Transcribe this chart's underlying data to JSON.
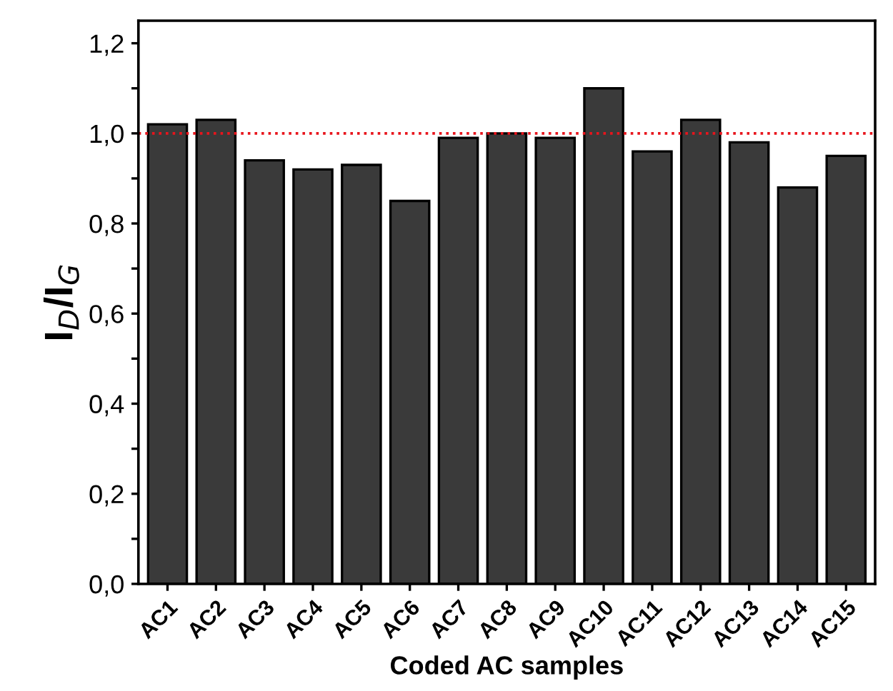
{
  "chart_data": {
    "type": "bar",
    "xlabel": "Coded AC samples",
    "ylabel": "I$_{D}$/I$_{G}$",
    "categories": [
      "AC1",
      "AC2",
      "AC3",
      "AC4",
      "AC5",
      "AC6",
      "AC7",
      "AC8",
      "AC9",
      "AC10",
      "AC11",
      "AC12",
      "AC13",
      "AC14",
      "AC15"
    ],
    "values": [
      1.02,
      1.03,
      0.94,
      0.92,
      0.93,
      0.85,
      0.99,
      1.0,
      0.99,
      1.1,
      0.96,
      1.03,
      0.98,
      0.88,
      0.95
    ],
    "color": "#3a3a3a",
    "ylim": [
      0,
      1.25
    ],
    "yticks": [
      {
        "value": 0,
        "label": "0,0"
      },
      {
        "value": 0.1,
        "label": null
      },
      {
        "value": 0.2,
        "label": "0,2"
      },
      {
        "value": 0.3,
        "label": null
      },
      {
        "value": 0.4,
        "label": "0,4"
      },
      {
        "value": 0.5,
        "label": null
      },
      {
        "value": 0.6,
        "label": "0,6"
      },
      {
        "value": 0.7,
        "label": null
      },
      {
        "value": 0.8,
        "label": "0,8"
      },
      {
        "value": 0.9,
        "label": null
      },
      {
        "value": 1.0,
        "label": "1,0"
      },
      {
        "value": 1.1,
        "label": null
      },
      {
        "value": 1.2,
        "label": "1,2"
      }
    ],
    "ref_lines": [
      {
        "axis": "y",
        "value": 1.0,
        "color": "#e8141c",
        "line_style": "dotted"
      }
    ],
    "grid": false,
    "legend": false
  }
}
